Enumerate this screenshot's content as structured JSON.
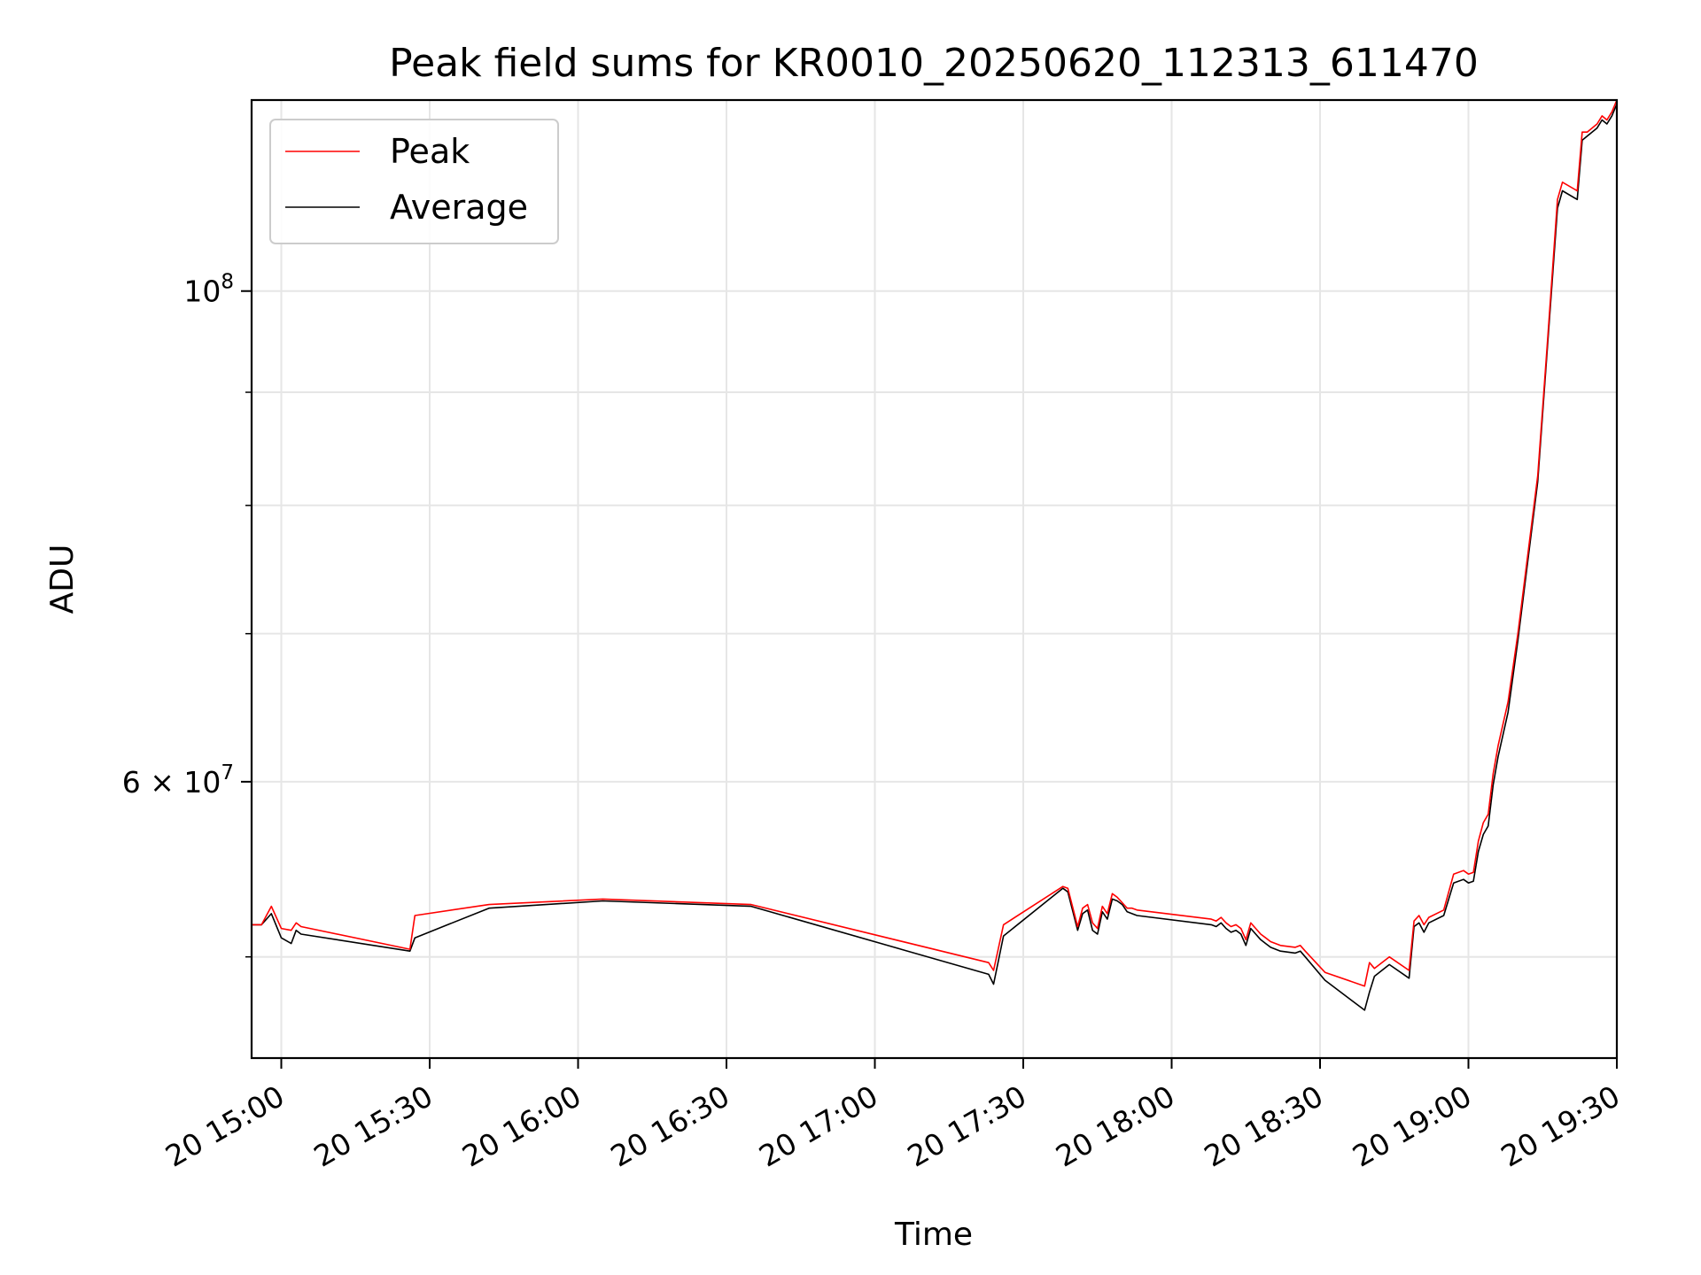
{
  "chart_data": {
    "type": "line",
    "title": "Peak field sums for KR0010_20250620_112313_611470",
    "xlabel": "Time",
    "ylabel": "ADU",
    "y_scale": "log",
    "xlim": [
      "2025-06-20 14:54",
      "2025-06-20 19:30"
    ],
    "ylim": [
      45000000,
      122000000
    ],
    "x_ticks": [
      "2025-06-20 15:00",
      "2025-06-20 15:30",
      "2025-06-20 16:00",
      "2025-06-20 16:30",
      "2025-06-20 17:00",
      "2025-06-20 17:30",
      "2025-06-20 18:00",
      "2025-06-20 18:30",
      "2025-06-20 19:00",
      "2025-06-20 19:30"
    ],
    "x_tick_labels": [
      "20 15:00",
      "20 15:30",
      "20 16:00",
      "20 16:30",
      "20 17:00",
      "20 17:30",
      "20 18:00",
      "20 18:30",
      "20 19:00",
      "20 19:30"
    ],
    "y_major_ticks": [
      60000000,
      100000000
    ],
    "y_major_labels": [
      {
        "mantissa": "6 × 10",
        "exp": "7"
      },
      {
        "mantissa": "10",
        "exp": "8"
      }
    ],
    "y_minor_ticks": [
      50000000,
      70000000,
      80000000,
      90000000
    ],
    "grid": true,
    "legend_position": "top-left",
    "series": [
      {
        "name": "Peak",
        "color": "#ff0000",
        "x": [
          "2025-06-20 14:54",
          "2025-06-20 14:56",
          "2025-06-20 14:58",
          "2025-06-20 15:00",
          "2025-06-20 15:02",
          "2025-06-20 15:03",
          "2025-06-20 15:04",
          "2025-06-20 15:26",
          "2025-06-20 15:27",
          "2025-06-20 15:42",
          "2025-06-20 16:05",
          "2025-06-20 16:35",
          "2025-06-20 17:23",
          "2025-06-20 17:24",
          "2025-06-20 17:26",
          "2025-06-20 17:38",
          "2025-06-20 17:39",
          "2025-06-20 17:41",
          "2025-06-20 17:42",
          "2025-06-20 17:43",
          "2025-06-20 17:44",
          "2025-06-20 17:45",
          "2025-06-20 17:46",
          "2025-06-20 17:47",
          "2025-06-20 17:48",
          "2025-06-20 17:49",
          "2025-06-20 17:50",
          "2025-06-20 17:51",
          "2025-06-20 17:52",
          "2025-06-20 17:53",
          "2025-06-20 18:08",
          "2025-06-20 18:09",
          "2025-06-20 18:10",
          "2025-06-20 18:11",
          "2025-06-20 18:12",
          "2025-06-20 18:13",
          "2025-06-20 18:14",
          "2025-06-20 18:15",
          "2025-06-20 18:16",
          "2025-06-20 18:17",
          "2025-06-20 18:18",
          "2025-06-20 18:19",
          "2025-06-20 18:20",
          "2025-06-20 18:22",
          "2025-06-20 18:25",
          "2025-06-20 18:26",
          "2025-06-20 18:27",
          "2025-06-20 18:31",
          "2025-06-20 18:39",
          "2025-06-20 18:40",
          "2025-06-20 18:41",
          "2025-06-20 18:44",
          "2025-06-20 18:48",
          "2025-06-20 18:49",
          "2025-06-20 18:50",
          "2025-06-20 18:51",
          "2025-06-20 18:52",
          "2025-06-20 18:55",
          "2025-06-20 18:57",
          "2025-06-20 18:59",
          "2025-06-20 19:00",
          "2025-06-20 19:01",
          "2025-06-20 19:02",
          "2025-06-20 19:03",
          "2025-06-20 19:04",
          "2025-06-20 19:05",
          "2025-06-20 19:06",
          "2025-06-20 19:08",
          "2025-06-20 19:10",
          "2025-06-20 19:12",
          "2025-06-20 19:14",
          "2025-06-20 19:16",
          "2025-06-20 19:18",
          "2025-06-20 19:19",
          "2025-06-20 19:22",
          "2025-06-20 19:23",
          "2025-06-20 19:24",
          "2025-06-20 19:26",
          "2025-06-20 19:27",
          "2025-06-20 19:28",
          "2025-06-20 19:29",
          "2025-06-20 19:30"
        ],
        "values": [
          51700000,
          51700000,
          52700000,
          51500000,
          51400000,
          51800000,
          51600000,
          50400000,
          52200000,
          52800000,
          53100000,
          52800000,
          49700000,
          49300000,
          51700000,
          53800000,
          53700000,
          51600000,
          52600000,
          52800000,
          51800000,
          51500000,
          52700000,
          52300000,
          53400000,
          53200000,
          52900000,
          52600000,
          52600000,
          52500000,
          52000000,
          51900000,
          52100000,
          51800000,
          51600000,
          51700000,
          51500000,
          50900000,
          51800000,
          51500000,
          51200000,
          51000000,
          50800000,
          50600000,
          50500000,
          50600000,
          50300000,
          49200000,
          48500000,
          49700000,
          49400000,
          50000000,
          49300000,
          51900000,
          52200000,
          51700000,
          52100000,
          52500000,
          54500000,
          54700000,
          54500000,
          54600000,
          56400000,
          57500000,
          58000000,
          60500000,
          62300000,
          65200000,
          70000000,
          76000000,
          82500000,
          95000000,
          110000000,
          112000000,
          111000000,
          118000000,
          118000000,
          119000000,
          120000000,
          119500000,
          120500000,
          122000000
        ]
      },
      {
        "name": "Average",
        "color": "#000000",
        "x": [
          "2025-06-20 14:54",
          "2025-06-20 14:56",
          "2025-06-20 14:58",
          "2025-06-20 15:00",
          "2025-06-20 15:02",
          "2025-06-20 15:03",
          "2025-06-20 15:04",
          "2025-06-20 15:26",
          "2025-06-20 15:27",
          "2025-06-20 15:42",
          "2025-06-20 16:05",
          "2025-06-20 16:35",
          "2025-06-20 17:23",
          "2025-06-20 17:24",
          "2025-06-20 17:26",
          "2025-06-20 17:38",
          "2025-06-20 17:39",
          "2025-06-20 17:41",
          "2025-06-20 17:42",
          "2025-06-20 17:43",
          "2025-06-20 17:44",
          "2025-06-20 17:45",
          "2025-06-20 17:46",
          "2025-06-20 17:47",
          "2025-06-20 17:48",
          "2025-06-20 17:49",
          "2025-06-20 17:50",
          "2025-06-20 17:51",
          "2025-06-20 17:52",
          "2025-06-20 17:53",
          "2025-06-20 18:08",
          "2025-06-20 18:09",
          "2025-06-20 18:10",
          "2025-06-20 18:11",
          "2025-06-20 18:12",
          "2025-06-20 18:13",
          "2025-06-20 18:14",
          "2025-06-20 18:15",
          "2025-06-20 18:16",
          "2025-06-20 18:17",
          "2025-06-20 18:18",
          "2025-06-20 18:19",
          "2025-06-20 18:20",
          "2025-06-20 18:22",
          "2025-06-20 18:25",
          "2025-06-20 18:26",
          "2025-06-20 18:27",
          "2025-06-20 18:31",
          "2025-06-20 18:39",
          "2025-06-20 18:40",
          "2025-06-20 18:41",
          "2025-06-20 18:44",
          "2025-06-20 18:48",
          "2025-06-20 18:49",
          "2025-06-20 18:50",
          "2025-06-20 18:51",
          "2025-06-20 18:52",
          "2025-06-20 18:55",
          "2025-06-20 18:57",
          "2025-06-20 18:59",
          "2025-06-20 19:00",
          "2025-06-20 19:01",
          "2025-06-20 19:02",
          "2025-06-20 19:03",
          "2025-06-20 19:04",
          "2025-06-20 19:05",
          "2025-06-20 19:06",
          "2025-06-20 19:08",
          "2025-06-20 19:10",
          "2025-06-20 19:12",
          "2025-06-20 19:14",
          "2025-06-20 19:16",
          "2025-06-20 19:18",
          "2025-06-20 19:19",
          "2025-06-20 19:22",
          "2025-06-20 19:23",
          "2025-06-20 19:24",
          "2025-06-20 19:26",
          "2025-06-20 19:27",
          "2025-06-20 19:28",
          "2025-06-20 19:29",
          "2025-06-20 19:30"
        ],
        "values": [
          51700000,
          51700000,
          52300000,
          51000000,
          50700000,
          51400000,
          51200000,
          50300000,
          51000000,
          52600000,
          53000000,
          52700000,
          49100000,
          48600000,
          51100000,
          53700000,
          53500000,
          51400000,
          52300000,
          52500000,
          51400000,
          51200000,
          52400000,
          52000000,
          53100000,
          53000000,
          52800000,
          52400000,
          52300000,
          52200000,
          51700000,
          51600000,
          51800000,
          51500000,
          51300000,
          51400000,
          51200000,
          50600000,
          51500000,
          51200000,
          50900000,
          50700000,
          50500000,
          50300000,
          50200000,
          50300000,
          50000000,
          48800000,
          47300000,
          48200000,
          49000000,
          49600000,
          48900000,
          51600000,
          51800000,
          51300000,
          51800000,
          52200000,
          54000000,
          54200000,
          54000000,
          54100000,
          55800000,
          56800000,
          57300000,
          59800000,
          61600000,
          64500000,
          69500000,
          75500000,
          82000000,
          94500000,
          109000000,
          111000000,
          110000000,
          117000000,
          117500000,
          118500000,
          119500000,
          119000000,
          120000000,
          121500000
        ]
      }
    ]
  }
}
